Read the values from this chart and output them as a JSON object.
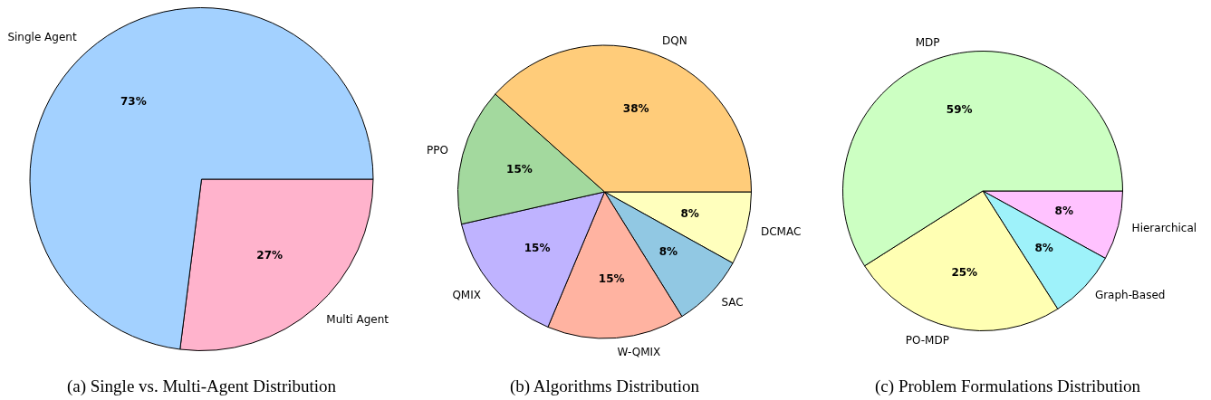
{
  "chart_data": [
    {
      "type": "pie",
      "title": "(a) Single vs. Multi-Agent Distribution",
      "categories": [
        "Single Agent",
        "Multi Agent"
      ],
      "values": [
        73,
        27
      ],
      "value_labels": [
        "73%",
        "27%"
      ],
      "colors": [
        "#a3d1ff",
        "#ffb3cc"
      ]
    },
    {
      "type": "pie",
      "title": "(b) Algorithms Distribution",
      "categories": [
        "DQN",
        "PPO",
        "QMIX",
        "W-QMIX",
        "SAC",
        "DCMAC"
      ],
      "values": [
        38,
        15,
        15,
        15,
        8,
        8
      ],
      "value_labels": [
        "38%",
        "15%",
        "15%",
        "15%",
        "8%",
        "8%"
      ],
      "colors": [
        "#ffcc7a",
        "#a3d99e",
        "#bfb3ff",
        "#ffb3a1",
        "#91c8e3",
        "#ffffbd"
      ]
    },
    {
      "type": "pie",
      "title": "(c) Problem Formulations Distribution",
      "categories": [
        "MDP",
        "PO-MDP",
        "Graph-Based",
        "Hierarchical"
      ],
      "values": [
        59,
        25,
        8,
        8
      ],
      "value_labels": [
        "59%",
        "25%",
        "8%",
        "8%"
      ],
      "colors": [
        "#ccffc2",
        "#ffffb3",
        "#9ef2fa",
        "#ffc2ff"
      ]
    }
  ]
}
